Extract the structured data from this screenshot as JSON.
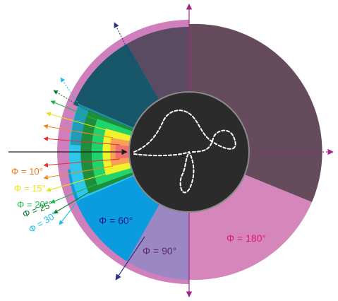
{
  "labels": {
    "phi_10": "Φ = 10°",
    "phi_15": "Φ = 15°",
    "phi_20": "Φ = 20°",
    "phi_25": "Φ = 25°",
    "phi_30": "Φ = 30°",
    "phi_60": "Φ = 60°",
    "phi_90": "Φ = 90°",
    "phi_180": "Φ = 180°"
  },
  "colors": {
    "sector_180": "#654b5b",
    "sector_180_lower": "#d586bb",
    "sector_90": "#9b87c3",
    "sector_60_blue": "#0b9ce0",
    "sector_60_dark": "#1b5f73",
    "sector_30": "#2ec6ea",
    "sector_25": "#1f8e3c",
    "sector_20": "#21d36b",
    "sector_15": "#f1f32a",
    "sector_10": "#fb9f54",
    "sector_5": "#f06f73",
    "outer_ring": "#cf7fbb",
    "core": "#2b2b2b",
    "label_10": "#f07a1a",
    "label_15": "#eeee10",
    "label_20": "#1fc24e",
    "label_25": "#117a30",
    "label_30": "#18c0e6",
    "label_60": "#1a1a8a",
    "label_90": "#5c2a6a",
    "label_180": "#e0187a",
    "axis_magenta": "#a0268a",
    "incoming_arrow": "#222222"
  }
}
